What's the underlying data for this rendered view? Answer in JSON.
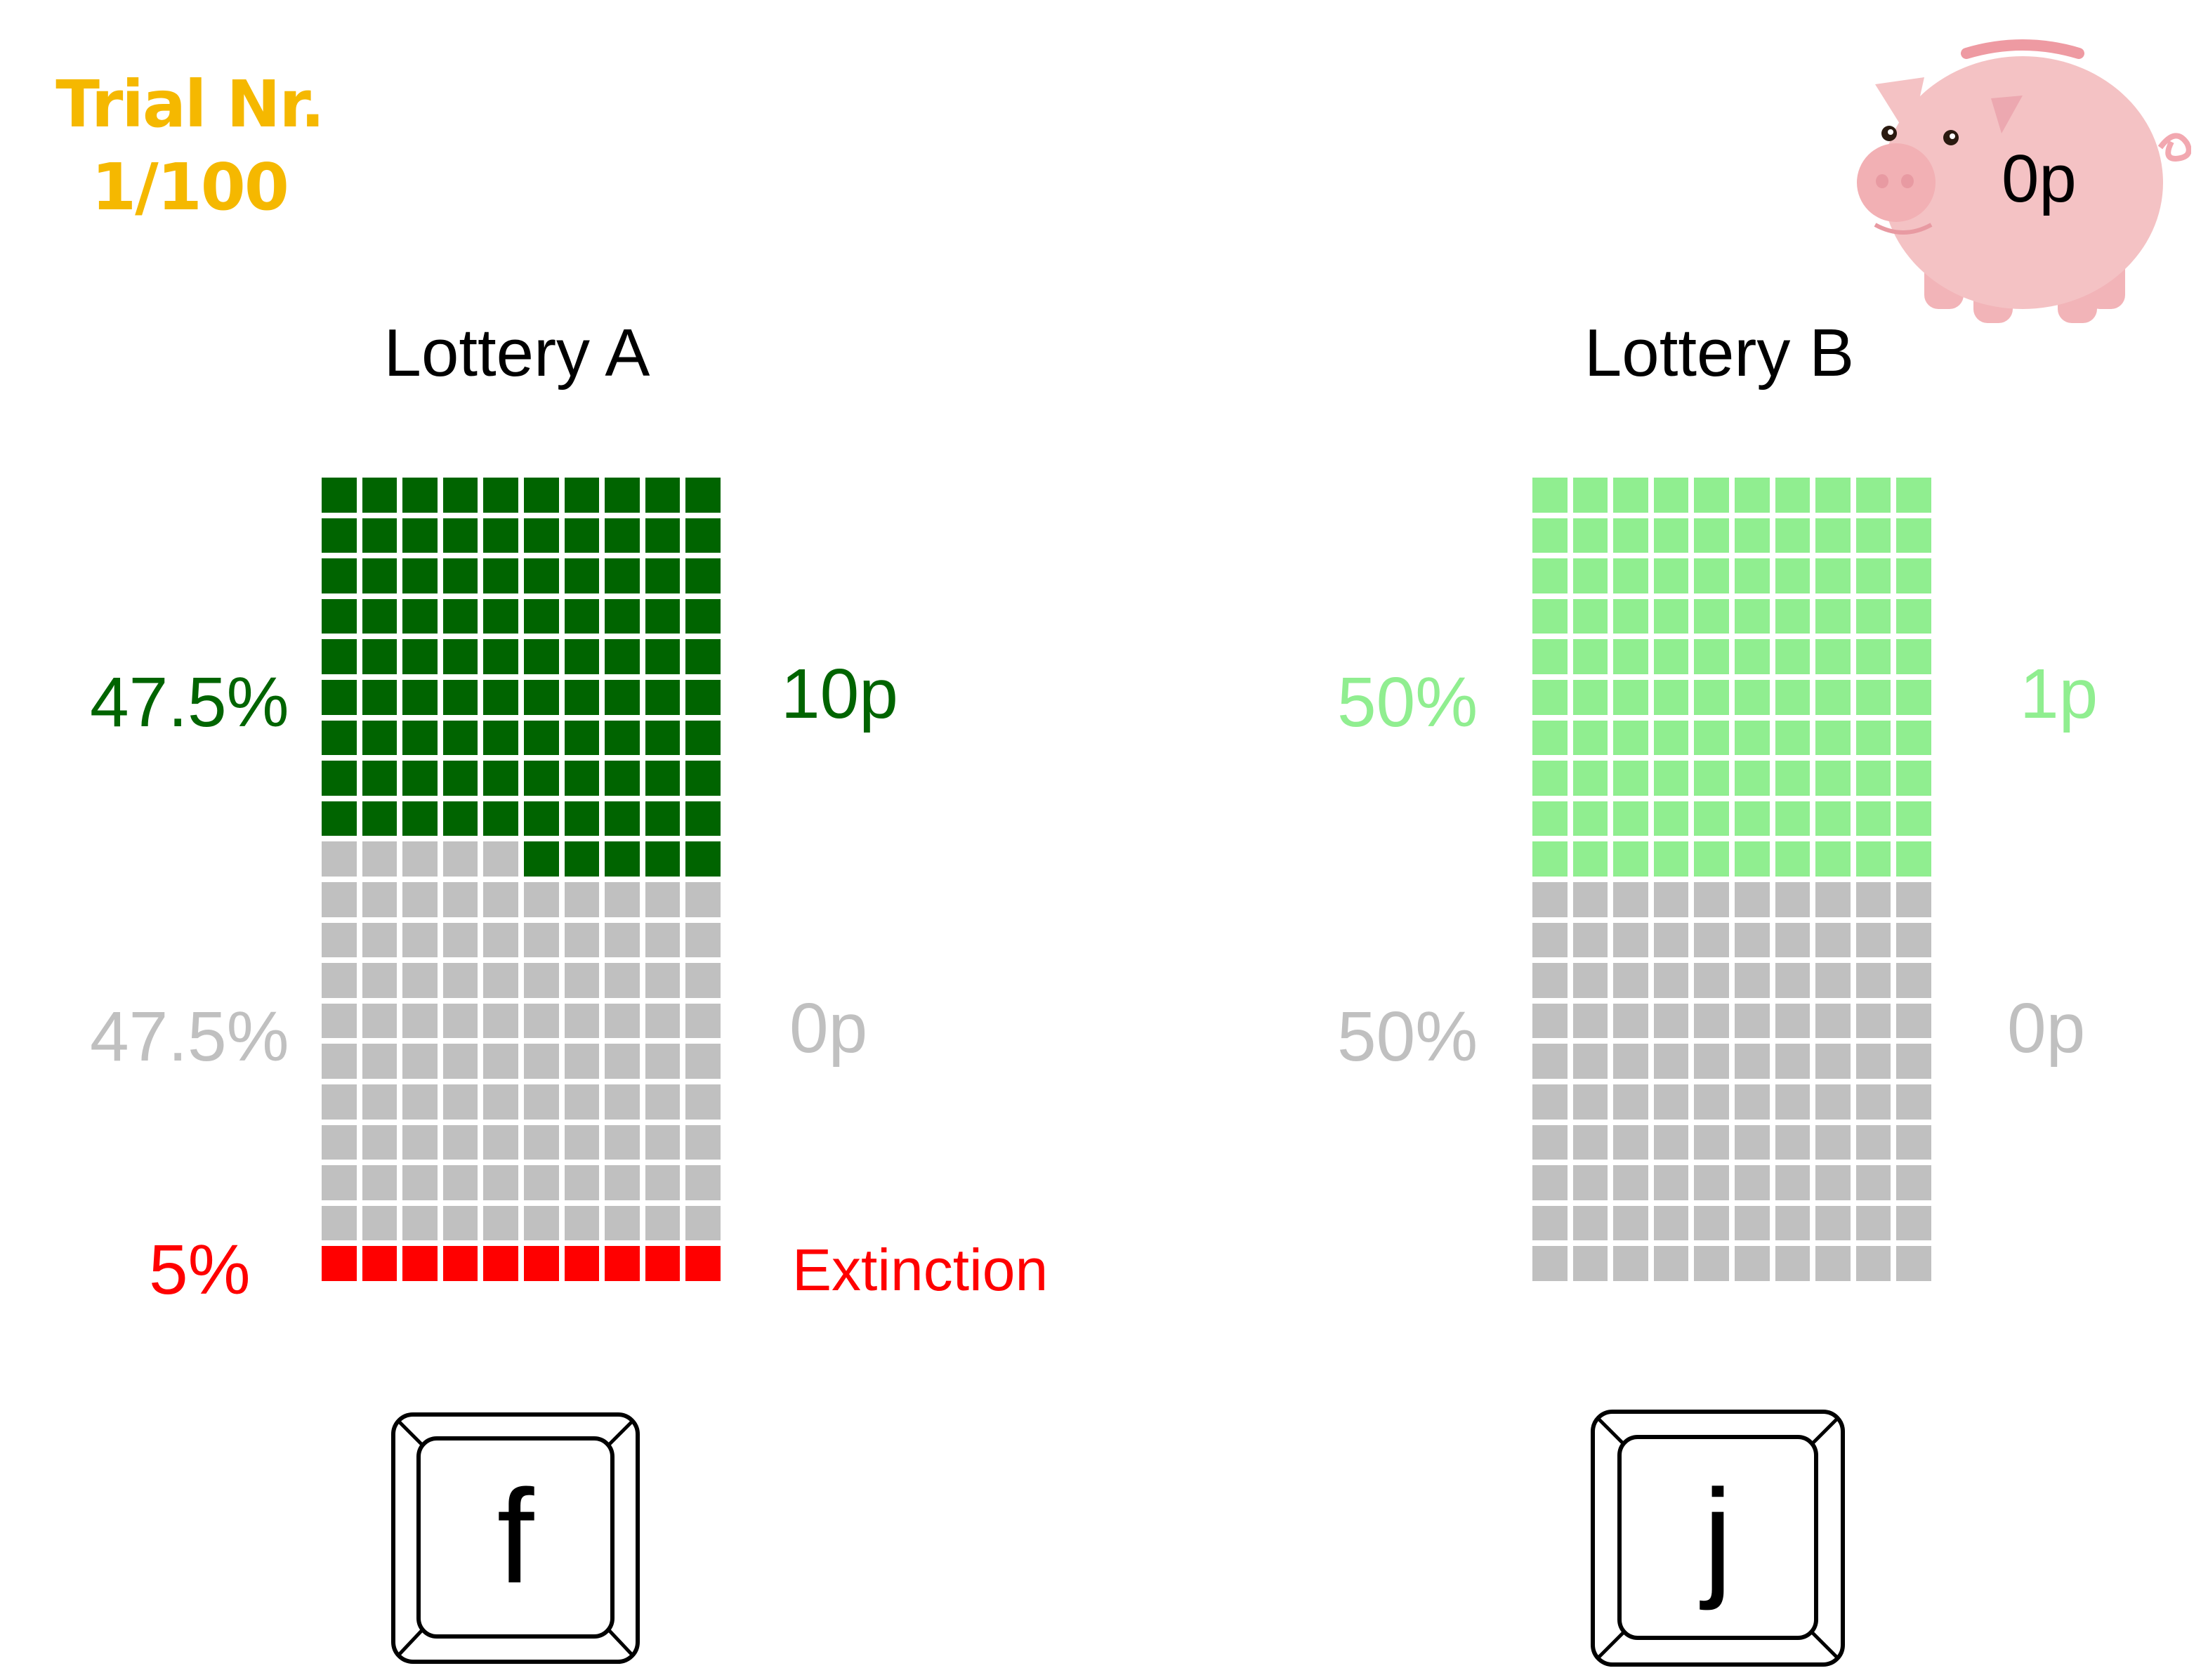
{
  "trial": {
    "label": "Trial Nr.",
    "counter": "1/100"
  },
  "piggybank": {
    "amount": "0p"
  },
  "lottery_a": {
    "title": "Lottery A",
    "win_pct": "47.5%",
    "win_amount": "10p",
    "zero_pct": "47.5%",
    "zero_amount": "0p",
    "extinction_pct": "5%",
    "extinction_label": "Extinction",
    "cells": {
      "win": 47.5,
      "zero": 47.5,
      "extinction": 5
    },
    "key": "f"
  },
  "lottery_b": {
    "title": "Lottery B",
    "win_pct": "50%",
    "win_amount": "1p",
    "zero_pct": "50%",
    "zero_amount": "0p",
    "cells": {
      "win": 50,
      "zero": 50,
      "extinction": 0
    },
    "key": "j"
  },
  "colors": {
    "dark_green": "#006400",
    "light_green": "#90ee90",
    "grey": "#c0c0c0",
    "red": "#ff0000",
    "trial_gold": "#f5b800",
    "pig_pink": "#f4c2c2"
  }
}
